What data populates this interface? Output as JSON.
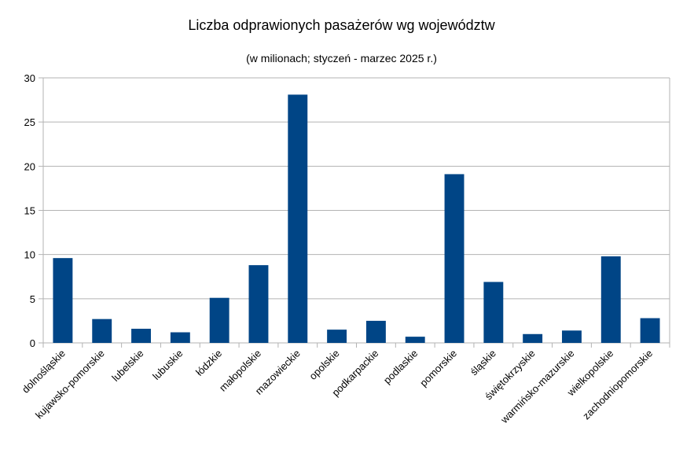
{
  "chart_data": {
    "type": "bar",
    "title": "Liczba odprawionych pasażerów wg województw",
    "subtitle": "(w milionach; styczeń - marzec 2025 r.)",
    "categories": [
      "dolnośląskie",
      "kujawsko-pomorskie",
      "lubelskie",
      "lubuskie",
      "łódzkie",
      "małopolskie",
      "mazowieckie",
      "opolskie",
      "podkarpackie",
      "podlaskie",
      "pomorskie",
      "śląskie",
      "świętokrzyskie",
      "warmińsko-mazurskie",
      "wielkopolskie",
      "zachodniopomorskie"
    ],
    "values": [
      9.6,
      2.7,
      1.6,
      1.2,
      5.1,
      8.8,
      28.1,
      1.5,
      2.5,
      0.7,
      19.1,
      6.9,
      1.0,
      1.4,
      9.8,
      2.8
    ],
    "ylim": [
      0,
      30
    ],
    "yticks": [
      0,
      5,
      10,
      15,
      20,
      25,
      30
    ],
    "grid": true,
    "legend": "none",
    "bar_color": "#004586",
    "grid_color": "#b3b3b3"
  }
}
